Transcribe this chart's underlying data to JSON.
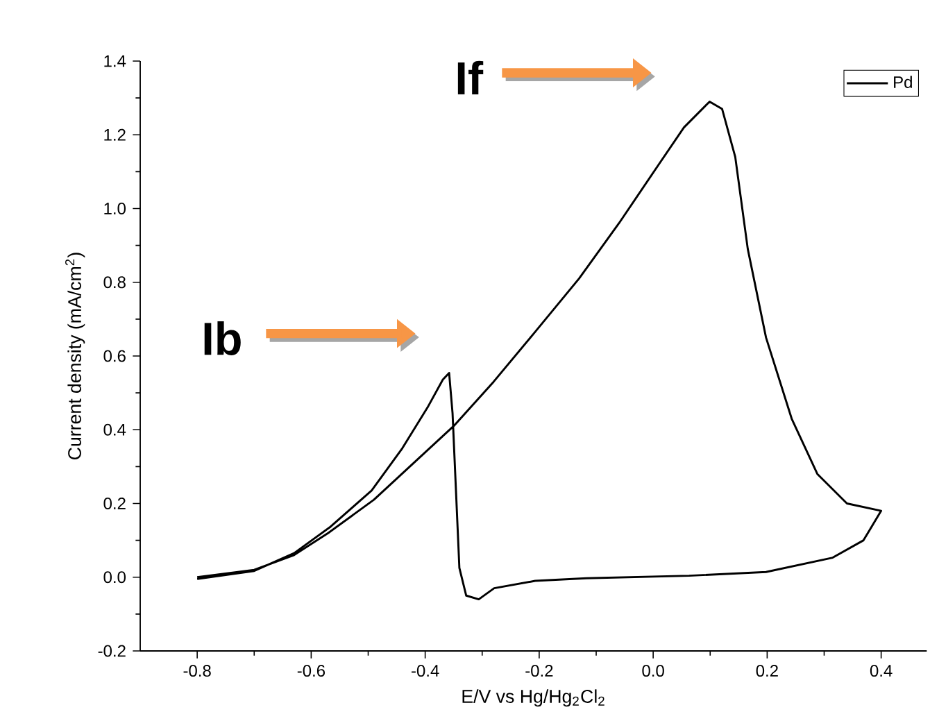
{
  "chart_data": {
    "type": "line",
    "xlabel": "E/V vs Hg/Hg$_{2}$Cl$_{2}$",
    "ylabel": "Current density (mA/cm$^{2}$)",
    "xlim": [
      -0.9,
      0.48
    ],
    "ylim": [
      -0.2,
      1.4
    ],
    "xticks": [
      -0.8,
      -0.6,
      -0.4,
      -0.2,
      {
        "value": 0,
        "label": "0.0"
      },
      0.2,
      0.4
    ],
    "yticks": [
      -0.2,
      {
        "value": 0,
        "label": "0.0"
      },
      0.2,
      0.4,
      0.6,
      0.8,
      {
        "value": 1,
        "label": "1.0"
      },
      1.2,
      1.4
    ],
    "legend": "top right",
    "grid": false,
    "marker": "none",
    "line_style": "solid",
    "annotations": [
      "If",
      "Ib"
    ],
    "series": [
      {
        "name": "Pd",
        "color": "#000000",
        "x": [
          -0.8,
          -0.7,
          -0.63,
          -0.57,
          -0.49,
          -0.42,
          -0.35,
          -0.28,
          -0.21,
          -0.13,
          -0.06,
          0.01,
          0.054,
          0.099,
          0.121,
          0.144,
          0.166,
          0.198,
          0.243,
          0.288,
          0.34,
          0.4,
          0.369,
          0.315,
          0.198,
          0.063,
          -0.117,
          -0.207,
          -0.279,
          -0.306,
          -0.328,
          -0.34,
          -0.346,
          -0.352,
          -0.358,
          -0.369,
          -0.396,
          -0.44,
          -0.494,
          -0.566,
          -0.63,
          -0.7,
          -0.8
        ],
        "values": [
          0.0,
          0.02,
          0.06,
          0.12,
          0.21,
          0.31,
          0.41,
          0.53,
          0.66,
          0.81,
          0.96,
          1.12,
          1.22,
          1.29,
          1.27,
          1.14,
          0.89,
          0.65,
          0.43,
          0.28,
          0.2,
          0.18,
          0.1,
          0.053,
          0.014,
          0.004,
          -0.003,
          -0.01,
          -0.03,
          -0.06,
          -0.05,
          0.025,
          0.235,
          0.445,
          0.554,
          0.536,
          0.46,
          0.35,
          0.235,
          0.137,
          0.065,
          0.017,
          -0.005
        ]
      }
    ]
  }
}
